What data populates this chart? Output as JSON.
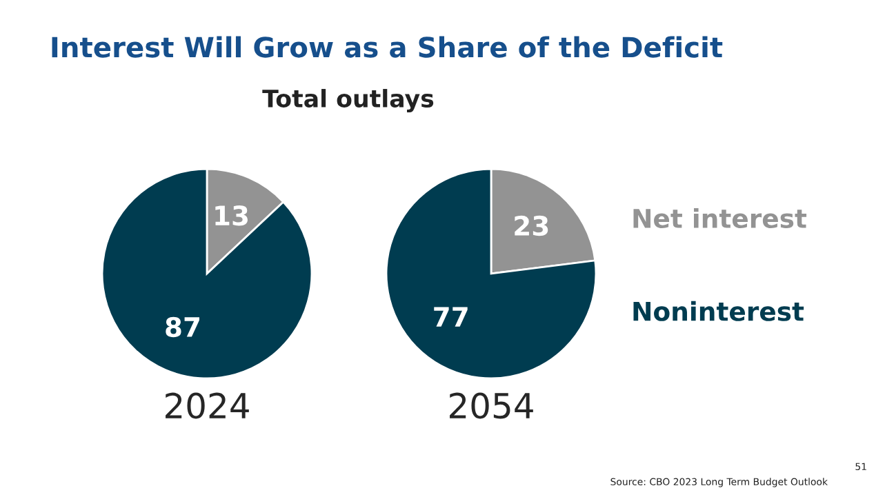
{
  "chart_data": [
    {
      "type": "pie",
      "title": "Interest Will Grow as a Share of the Deficit",
      "subtitle": "Total outlays",
      "xlabel": "2024",
      "categories": [
        null,
        null
      ],
      "values": [
        13,
        87
      ],
      "colors": [
        "#939393",
        "#003c50"
      ],
      "data_labels": true
    },
    {
      "type": "pie",
      "xlabel": "2054",
      "categories": [
        "Net interest",
        "Noninterest"
      ],
      "values": [
        23,
        77
      ],
      "colors": [
        "#939393",
        "#003c50"
      ],
      "data_labels": true,
      "annotations": [
        "Source: CBO 2023 Long Term Budget Outlook",
        "51"
      ]
    }
  ]
}
